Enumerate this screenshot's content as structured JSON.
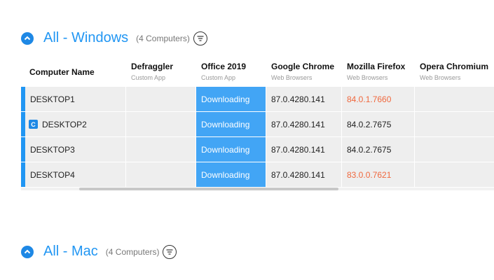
{
  "groups": {
    "windows": {
      "title": "All - Windows",
      "count": "(4 Computers)"
    },
    "mac": {
      "title": "All - Mac",
      "count": "(4 Computers)"
    }
  },
  "columns": [
    {
      "name": "Computer Name",
      "sub": ""
    },
    {
      "name": "Defraggler",
      "sub": "Custom App"
    },
    {
      "name": "Office 2019",
      "sub": "Custom App"
    },
    {
      "name": "Google Chrome",
      "sub": "Web Browsers"
    },
    {
      "name": "Mozilla Firefox",
      "sub": "Web Browsers"
    },
    {
      "name": "Opera Chromium",
      "sub": "Web Browsers"
    }
  ],
  "rows": [
    {
      "computer": "DESKTOP1",
      "badge": "",
      "defraggler": "",
      "office": "Downloading",
      "chrome": "87.0.4280.141",
      "firefox": "84.0.1.7660",
      "opera": ""
    },
    {
      "computer": "DESKTOP2",
      "badge": "C",
      "defraggler": "",
      "office": "Downloading",
      "chrome": "87.0.4280.141",
      "firefox": "84.0.2.7675",
      "opera": ""
    },
    {
      "computer": "DESKTOP3",
      "badge": "",
      "defraggler": "",
      "office": "Downloading",
      "chrome": "87.0.4280.141",
      "firefox": "84.0.2.7675",
      "opera": ""
    },
    {
      "computer": "DESKTOP4",
      "badge": "",
      "defraggler": "",
      "office": "Downloading",
      "chrome": "87.0.4280.141",
      "firefox": "83.0.0.7621",
      "opera": ""
    }
  ],
  "colors": {
    "accent": "#2196f3",
    "downloading_bg": "#42a5f5",
    "outdated_text": "#f0683e"
  },
  "status_colors": [
    "",
    "",
    "",
    "",
    "",
    "",
    "",
    "",
    "",
    "",
    "",
    "",
    "",
    "",
    "",
    "",
    "",
    "",
    "",
    "",
    "",
    "",
    "",
    ""
  ]
}
